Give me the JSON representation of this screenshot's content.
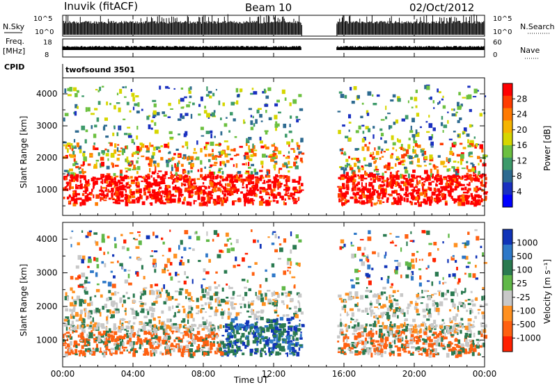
{
  "header": {
    "title": "Inuvik (fitACF)",
    "beam": "Beam 10",
    "date": "02/Oct/2012"
  },
  "side_labels": {
    "nsky": "N.Sky",
    "freq": "Freq.",
    "mhz": "[MHz]",
    "cpid": "CPID",
    "nsearch": "N.Search",
    "nave": "Nave"
  },
  "cpid_text": "twofsound 3501",
  "chart_data": [
    {
      "type": "line",
      "name": "noise_panel",
      "ylabel_left": "N.Sky",
      "ylabel_right": "N.Search",
      "left_ticks": [
        "10^5",
        "10^0"
      ],
      "right_ticks": [
        "10^5",
        "10^0"
      ],
      "data_gap_ut_hours": [
        13.6,
        15.6
      ]
    },
    {
      "type": "line",
      "name": "freq_panel",
      "ylabel_left": "Freq. [MHz]",
      "ylabel_right": "Nave",
      "left_ticks": [
        "18",
        "8"
      ],
      "right_ticks": [
        "60",
        "0"
      ],
      "data_gap_ut_hours": [
        13.6,
        15.6
      ]
    },
    {
      "type": "heatmap",
      "name": "power",
      "ylabel": "Slant Range [km]",
      "y_ticks": [
        1000,
        2000,
        3000,
        4000
      ],
      "ylim": [
        200,
        4500
      ],
      "xlim_hours": [
        0,
        24
      ],
      "colorbar_label": "Power [dB]",
      "colorbar_ticks": [
        "28",
        "24",
        "20",
        "16",
        "12",
        "8",
        "4"
      ],
      "colorbar_colors": [
        "#ff0000",
        "#ff3c00",
        "#ff7a00",
        "#f5b400",
        "#d6d600",
        "#6cc040",
        "#3d9a6a",
        "#2d6a90",
        "#1a30c0",
        "#0000ff"
      ]
    },
    {
      "type": "heatmap",
      "name": "velocity",
      "ylabel": "Slant Range [km]",
      "y_ticks": [
        1000,
        2000,
        3000,
        4000
      ],
      "ylim": [
        200,
        4500
      ],
      "xlim_hours": [
        0,
        24
      ],
      "colorbar_label": "Velocity [m s⁻¹]",
      "colorbar_ticks": [
        "1000",
        "500",
        "100",
        "25",
        "-25",
        "-100",
        "-500",
        "-1000"
      ],
      "colorbar_colors": [
        "#1034b8",
        "#2e78c8",
        "#2a7a50",
        "#60b848",
        "#c8c8c8",
        "#ff9020",
        "#ff6010",
        "#ff2000"
      ]
    }
  ],
  "x_axis": {
    "ticks": [
      "00:00",
      "04:00",
      "08:00",
      "12:00",
      "16:00",
      "20:00",
      "00:00"
    ],
    "label": "Time UT"
  }
}
